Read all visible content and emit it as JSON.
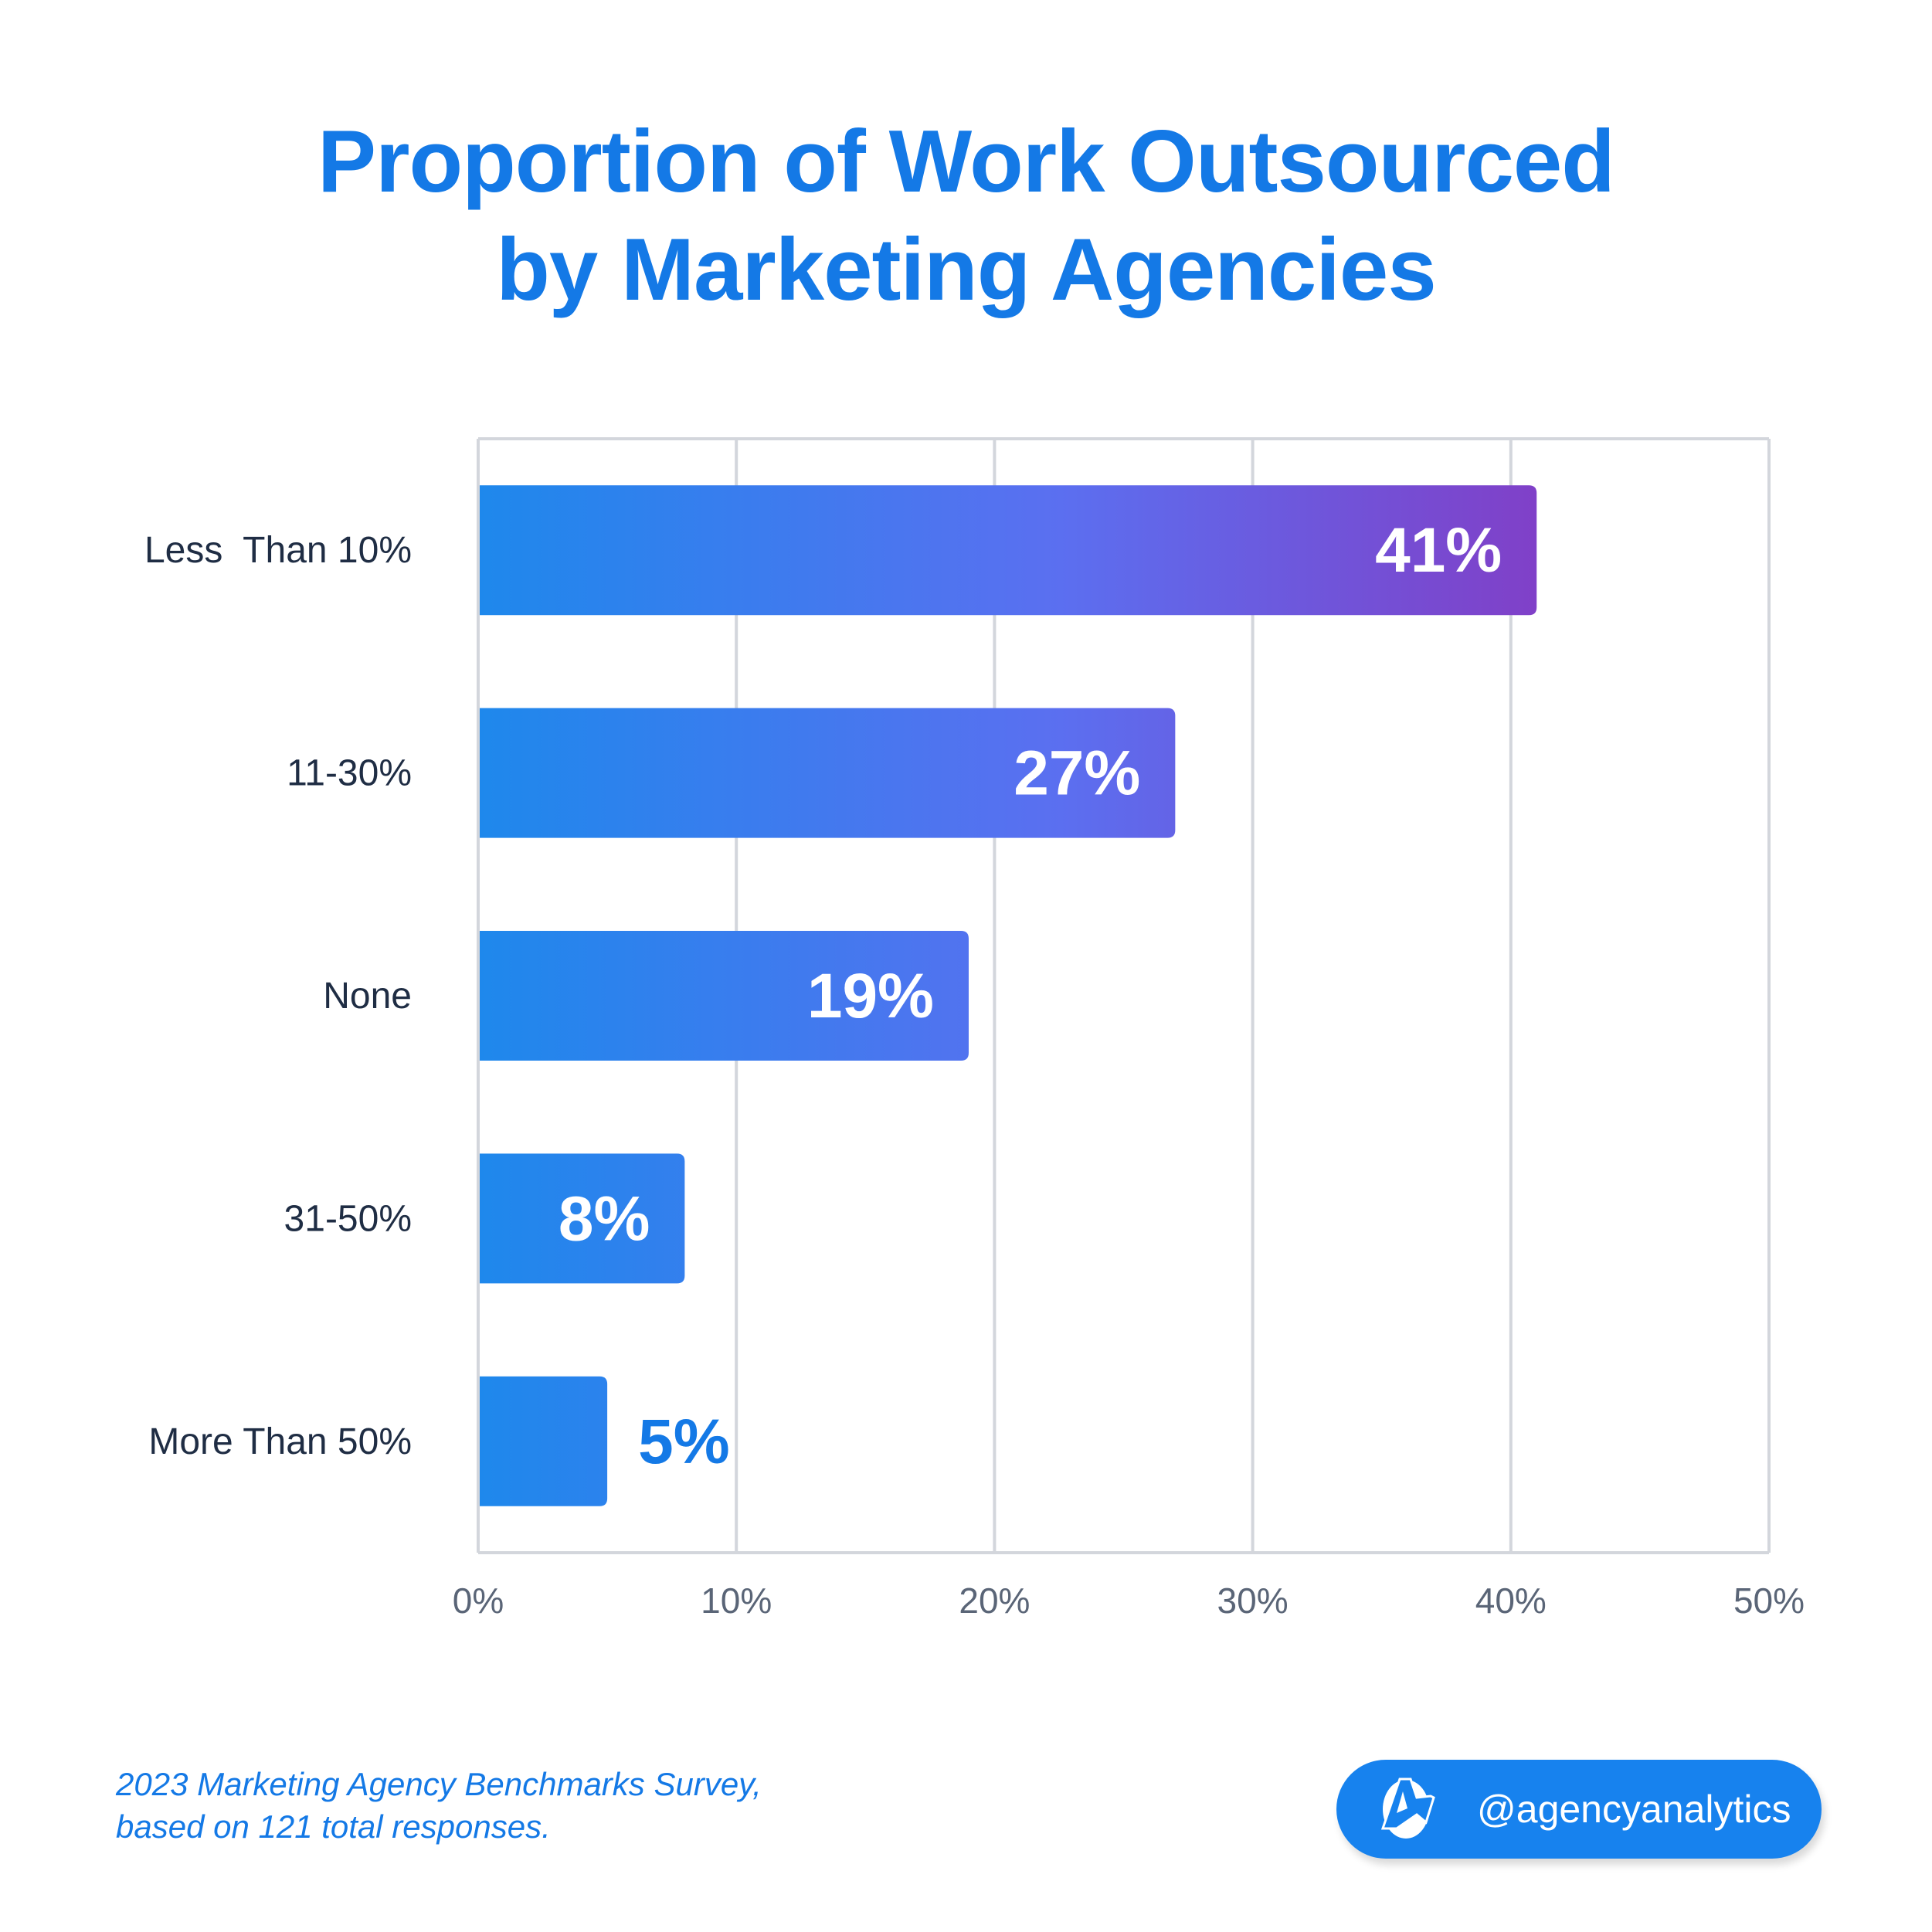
{
  "chart_data": {
    "type": "bar",
    "orientation": "horizontal",
    "title": "Proportion of Work Outsourced by Marketing Agencies",
    "title_lines": [
      "Proportion of Work Outsourced",
      "by Marketing Agencies"
    ],
    "categories": [
      "Less  Than 10%",
      "11-30%",
      "None",
      "31-50%",
      "More Than 50%"
    ],
    "values": [
      41,
      27,
      19,
      8,
      5
    ],
    "data_labels": [
      "41%",
      "27%",
      "19%",
      "8%",
      "5%"
    ],
    "xlim": [
      0,
      50
    ],
    "x_ticks": [
      "0%",
      "10%",
      "20%",
      "30%",
      "40%",
      "50%"
    ],
    "grid": true,
    "colors": {
      "gradient_start": "#1e88ec",
      "gradient_end": "#8040c8",
      "title": "#1479e6",
      "label": "#1f2d44",
      "tick": "#5a6577",
      "grid": "#d3d6dc"
    }
  },
  "footnote": [
    "2023 Marketing Agency Benchmarks Survey,",
    "based on 121 total responses."
  ],
  "badge": {
    "handle": "@agencyanalytics",
    "icon": "agencyanalytics-logo-icon"
  }
}
